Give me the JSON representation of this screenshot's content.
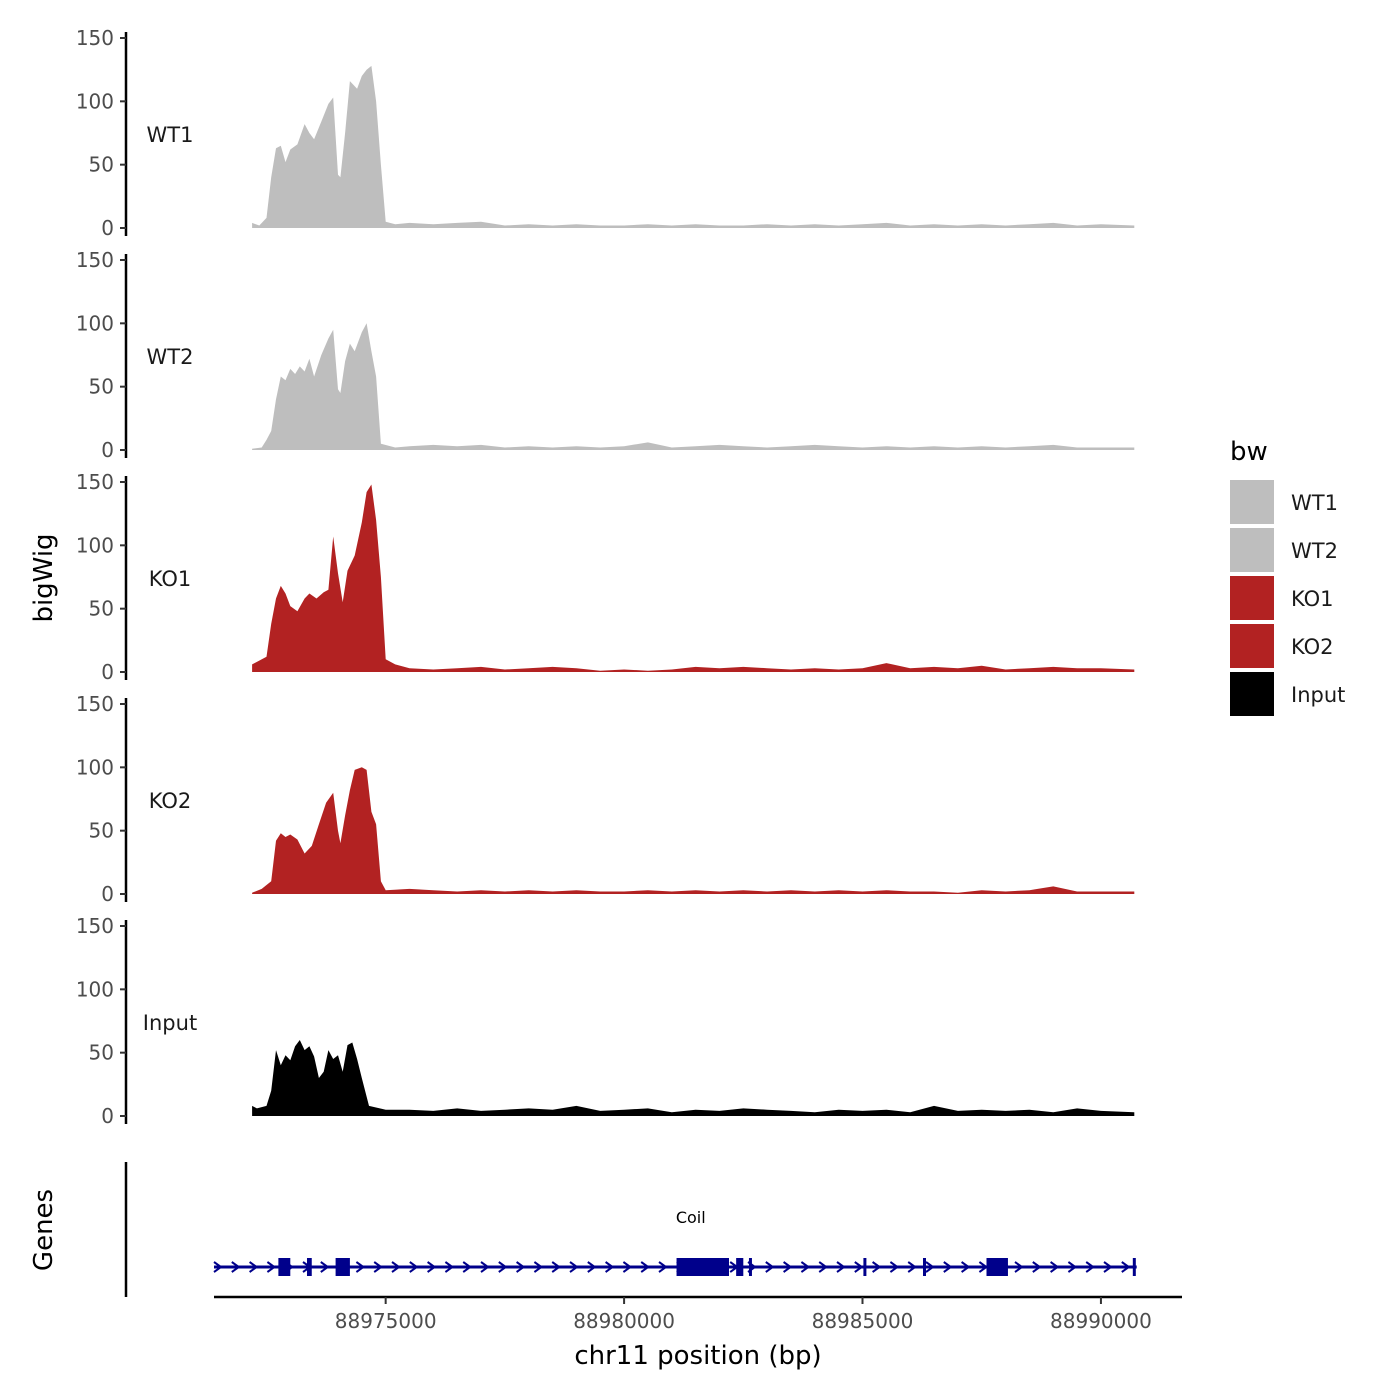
{
  "chart_data": {
    "type": "area",
    "ylabel": "bigWig",
    "xlabel": "chr11 position (bp)",
    "xlim": [
      88971400,
      88991700
    ],
    "x_ticks": [
      88975000,
      88980000,
      88985000,
      88990000
    ],
    "x_tick_labels": [
      "88975000",
      "88980000",
      "88985000",
      "88990000"
    ],
    "ylim": [
      0,
      150
    ],
    "y_ticks": [
      0,
      50,
      100,
      150
    ],
    "y_tick_labels": [
      "0",
      "50",
      "100",
      "150"
    ],
    "genes_axis_label": "Genes",
    "legend": {
      "title": "bw",
      "position": "right",
      "entries": [
        {
          "label": "WT1",
          "color": "#bebebe"
        },
        {
          "label": "WT2",
          "color": "#bebebe"
        },
        {
          "label": "KO1",
          "color": "#b22222"
        },
        {
          "label": "KO2",
          "color": "#b22222"
        },
        {
          "label": "Input",
          "color": "#000000"
        }
      ]
    },
    "series": [
      {
        "name": "WT1",
        "color": "#bebebe",
        "points": [
          [
            88972200,
            4
          ],
          [
            88972350,
            2
          ],
          [
            88972500,
            8
          ],
          [
            88972600,
            40
          ],
          [
            88972700,
            63
          ],
          [
            88972800,
            65
          ],
          [
            88972900,
            52
          ],
          [
            88973000,
            62
          ],
          [
            88973150,
            66
          ],
          [
            88973300,
            82
          ],
          [
            88973400,
            75
          ],
          [
            88973500,
            70
          ],
          [
            88973650,
            84
          ],
          [
            88973800,
            98
          ],
          [
            88973900,
            103
          ],
          [
            88974000,
            42
          ],
          [
            88974050,
            40
          ],
          [
            88974150,
            75
          ],
          [
            88974250,
            116
          ],
          [
            88974400,
            110
          ],
          [
            88974500,
            120
          ],
          [
            88974600,
            125
          ],
          [
            88974700,
            128
          ],
          [
            88974800,
            100
          ],
          [
            88974900,
            50
          ],
          [
            88975000,
            5
          ],
          [
            88975200,
            3
          ],
          [
            88975500,
            4
          ],
          [
            88976000,
            3
          ],
          [
            88976500,
            4
          ],
          [
            88977000,
            5
          ],
          [
            88977500,
            2
          ],
          [
            88978000,
            3
          ],
          [
            88978500,
            2
          ],
          [
            88979000,
            3
          ],
          [
            88979500,
            2
          ],
          [
            88980000,
            2
          ],
          [
            88980500,
            3
          ],
          [
            88981000,
            2
          ],
          [
            88981500,
            3
          ],
          [
            88982000,
            2
          ],
          [
            88982500,
            2
          ],
          [
            88983000,
            3
          ],
          [
            88983500,
            2
          ],
          [
            88984000,
            3
          ],
          [
            88984500,
            2
          ],
          [
            88985000,
            3
          ],
          [
            88985500,
            4
          ],
          [
            88986000,
            2
          ],
          [
            88986500,
            3
          ],
          [
            88987000,
            2
          ],
          [
            88987500,
            3
          ],
          [
            88988000,
            2
          ],
          [
            88988500,
            3
          ],
          [
            88989000,
            4
          ],
          [
            88989500,
            2
          ],
          [
            88990000,
            3
          ],
          [
            88990700,
            2
          ]
        ]
      },
      {
        "name": "WT2",
        "color": "#bebebe",
        "points": [
          [
            88972200,
            1
          ],
          [
            88972400,
            2
          ],
          [
            88972500,
            8
          ],
          [
            88972600,
            15
          ],
          [
            88972700,
            40
          ],
          [
            88972800,
            58
          ],
          [
            88972900,
            55
          ],
          [
            88973000,
            64
          ],
          [
            88973100,
            60
          ],
          [
            88973200,
            66
          ],
          [
            88973300,
            62
          ],
          [
            88973400,
            72
          ],
          [
            88973500,
            58
          ],
          [
            88973650,
            75
          ],
          [
            88973800,
            88
          ],
          [
            88973900,
            95
          ],
          [
            88974000,
            48
          ],
          [
            88974050,
            45
          ],
          [
            88974150,
            70
          ],
          [
            88974250,
            84
          ],
          [
            88974350,
            78
          ],
          [
            88974500,
            93
          ],
          [
            88974600,
            100
          ],
          [
            88974700,
            78
          ],
          [
            88974800,
            58
          ],
          [
            88974900,
            5
          ],
          [
            88975200,
            2
          ],
          [
            88975500,
            3
          ],
          [
            88976000,
            4
          ],
          [
            88976500,
            3
          ],
          [
            88977000,
            4
          ],
          [
            88977500,
            2
          ],
          [
            88978000,
            3
          ],
          [
            88978500,
            2
          ],
          [
            88979000,
            3
          ],
          [
            88979500,
            2
          ],
          [
            88980000,
            3
          ],
          [
            88980500,
            6
          ],
          [
            88981000,
            2
          ],
          [
            88981500,
            3
          ],
          [
            88982000,
            4
          ],
          [
            88982500,
            3
          ],
          [
            88983000,
            2
          ],
          [
            88983500,
            3
          ],
          [
            88984000,
            4
          ],
          [
            88984500,
            3
          ],
          [
            88985000,
            2
          ],
          [
            88985500,
            3
          ],
          [
            88986000,
            2
          ],
          [
            88986500,
            3
          ],
          [
            88987000,
            2
          ],
          [
            88987500,
            3
          ],
          [
            88988000,
            2
          ],
          [
            88988500,
            3
          ],
          [
            88989000,
            4
          ],
          [
            88989500,
            2
          ],
          [
            88990000,
            2
          ],
          [
            88990700,
            2
          ]
        ]
      },
      {
        "name": "KO1",
        "color": "#b22222",
        "points": [
          [
            88972200,
            6
          ],
          [
            88972300,
            8
          ],
          [
            88972500,
            12
          ],
          [
            88972600,
            38
          ],
          [
            88972700,
            58
          ],
          [
            88972800,
            68
          ],
          [
            88972900,
            62
          ],
          [
            88973000,
            52
          ],
          [
            88973150,
            48
          ],
          [
            88973300,
            58
          ],
          [
            88973400,
            62
          ],
          [
            88973550,
            58
          ],
          [
            88973700,
            63
          ],
          [
            88973800,
            65
          ],
          [
            88973900,
            107
          ],
          [
            88974000,
            78
          ],
          [
            88974100,
            55
          ],
          [
            88974200,
            80
          ],
          [
            88974350,
            92
          ],
          [
            88974500,
            118
          ],
          [
            88974600,
            142
          ],
          [
            88974700,
            148
          ],
          [
            88974800,
            120
          ],
          [
            88974900,
            75
          ],
          [
            88975000,
            10
          ],
          [
            88975200,
            6
          ],
          [
            88975500,
            3
          ],
          [
            88976000,
            2
          ],
          [
            88976500,
            3
          ],
          [
            88977000,
            4
          ],
          [
            88977500,
            2
          ],
          [
            88978000,
            3
          ],
          [
            88978500,
            4
          ],
          [
            88979000,
            3
          ],
          [
            88979500,
            1
          ],
          [
            88980000,
            2
          ],
          [
            88980500,
            1
          ],
          [
            88981000,
            2
          ],
          [
            88981500,
            4
          ],
          [
            88982000,
            3
          ],
          [
            88982500,
            4
          ],
          [
            88983000,
            3
          ],
          [
            88983500,
            2
          ],
          [
            88984000,
            3
          ],
          [
            88984500,
            2
          ],
          [
            88985000,
            3
          ],
          [
            88985500,
            7
          ],
          [
            88986000,
            3
          ],
          [
            88986500,
            4
          ],
          [
            88987000,
            3
          ],
          [
            88987500,
            5
          ],
          [
            88988000,
            2
          ],
          [
            88988500,
            3
          ],
          [
            88989000,
            4
          ],
          [
            88989500,
            3
          ],
          [
            88990000,
            3
          ],
          [
            88990700,
            2
          ]
        ]
      },
      {
        "name": "KO2",
        "color": "#b22222",
        "points": [
          [
            88972200,
            1
          ],
          [
            88972400,
            4
          ],
          [
            88972600,
            10
          ],
          [
            88972700,
            42
          ],
          [
            88972800,
            48
          ],
          [
            88972900,
            45
          ],
          [
            88973000,
            47
          ],
          [
            88973150,
            43
          ],
          [
            88973300,
            32
          ],
          [
            88973450,
            38
          ],
          [
            88973600,
            55
          ],
          [
            88973750,
            72
          ],
          [
            88973900,
            80
          ],
          [
            88974000,
            50
          ],
          [
            88974050,
            40
          ],
          [
            88974150,
            62
          ],
          [
            88974250,
            82
          ],
          [
            88974350,
            98
          ],
          [
            88974500,
            100
          ],
          [
            88974600,
            98
          ],
          [
            88974700,
            65
          ],
          [
            88974800,
            55
          ],
          [
            88974900,
            10
          ],
          [
            88975000,
            3
          ],
          [
            88975500,
            4
          ],
          [
            88976000,
            3
          ],
          [
            88976500,
            2
          ],
          [
            88977000,
            3
          ],
          [
            88977500,
            2
          ],
          [
            88978000,
            3
          ],
          [
            88978500,
            2
          ],
          [
            88979000,
            3
          ],
          [
            88979500,
            2
          ],
          [
            88980000,
            2
          ],
          [
            88980500,
            3
          ],
          [
            88981000,
            2
          ],
          [
            88981500,
            3
          ],
          [
            88982000,
            2
          ],
          [
            88982500,
            3
          ],
          [
            88983000,
            2
          ],
          [
            88983500,
            3
          ],
          [
            88984000,
            2
          ],
          [
            88984500,
            3
          ],
          [
            88985000,
            2
          ],
          [
            88985500,
            3
          ],
          [
            88986000,
            2
          ],
          [
            88986500,
            2
          ],
          [
            88987000,
            1
          ],
          [
            88987500,
            3
          ],
          [
            88988000,
            2
          ],
          [
            88988500,
            3
          ],
          [
            88989000,
            6
          ],
          [
            88989500,
            2
          ],
          [
            88990000,
            2
          ],
          [
            88990700,
            2
          ]
        ]
      },
      {
        "name": "Input",
        "color": "#000000",
        "points": [
          [
            88972200,
            8
          ],
          [
            88972300,
            6
          ],
          [
            88972500,
            8
          ],
          [
            88972600,
            20
          ],
          [
            88972700,
            52
          ],
          [
            88972800,
            40
          ],
          [
            88972900,
            48
          ],
          [
            88973000,
            44
          ],
          [
            88973100,
            55
          ],
          [
            88973200,
            60
          ],
          [
            88973300,
            52
          ],
          [
            88973400,
            55
          ],
          [
            88973500,
            47
          ],
          [
            88973600,
            30
          ],
          [
            88973700,
            35
          ],
          [
            88973800,
            52
          ],
          [
            88973900,
            45
          ],
          [
            88974000,
            48
          ],
          [
            88974100,
            35
          ],
          [
            88974200,
            56
          ],
          [
            88974300,
            58
          ],
          [
            88974400,
            45
          ],
          [
            88974500,
            30
          ],
          [
            88974650,
            8
          ],
          [
            88975000,
            5
          ],
          [
            88975500,
            5
          ],
          [
            88976000,
            4
          ],
          [
            88976500,
            6
          ],
          [
            88977000,
            4
          ],
          [
            88977500,
            5
          ],
          [
            88978000,
            6
          ],
          [
            88978500,
            5
          ],
          [
            88979000,
            8
          ],
          [
            88979500,
            4
          ],
          [
            88980000,
            5
          ],
          [
            88980500,
            6
          ],
          [
            88981000,
            3
          ],
          [
            88981500,
            5
          ],
          [
            88982000,
            4
          ],
          [
            88982500,
            6
          ],
          [
            88983000,
            5
          ],
          [
            88983500,
            4
          ],
          [
            88984000,
            3
          ],
          [
            88984500,
            5
          ],
          [
            88985000,
            4
          ],
          [
            88985500,
            5
          ],
          [
            88986000,
            3
          ],
          [
            88986500,
            8
          ],
          [
            88987000,
            4
          ],
          [
            88987500,
            5
          ],
          [
            88988000,
            4
          ],
          [
            88988500,
            5
          ],
          [
            88989000,
            3
          ],
          [
            88989500,
            6
          ],
          [
            88990000,
            4
          ],
          [
            88990700,
            3
          ]
        ]
      }
    ],
    "genes": [
      {
        "name": "Coil",
        "start": 88971400,
        "end": 88990750,
        "strand": "+",
        "color": "#00008b",
        "exons": [
          [
            88972750,
            88973000
          ],
          [
            88973350,
            88973450
          ],
          [
            88973950,
            88974250
          ],
          [
            88981100,
            88982200
          ],
          [
            88982350,
            88982500
          ],
          [
            88987600,
            88988050
          ]
        ],
        "exon_lines": [
          88982650,
          88985050,
          88986300,
          88990700
        ]
      }
    ]
  }
}
